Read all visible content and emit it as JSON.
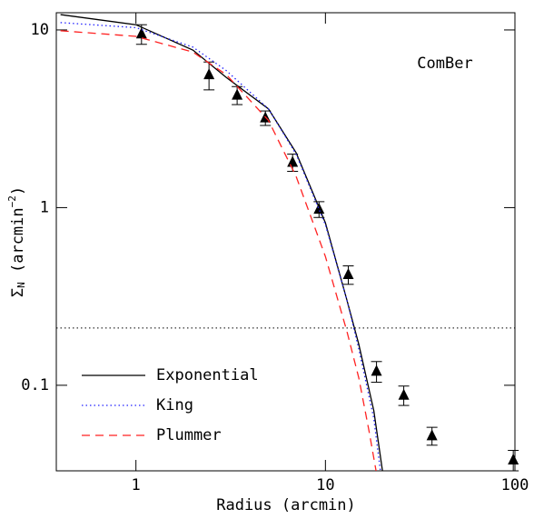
{
  "chart_data": {
    "type": "scatter",
    "xlabel": "Radius (arcmin)",
    "ylabel": [
      "Σ",
      "N",
      " (arcmin",
      "−2",
      ")"
    ],
    "annotation": "ComBer",
    "xscale": "log",
    "yscale": "log",
    "xlim": [
      0.38,
      100
    ],
    "ylim": [
      0.033,
      12.5
    ],
    "xticks": [
      1,
      10,
      100
    ],
    "yticks": [
      0.1,
      1,
      10
    ],
    "legend": "lower left",
    "series": [
      {
        "kind": "points",
        "color": "#000000",
        "x": [
          1.07,
          2.43,
          3.42,
          4.82,
          6.71,
          9.25,
          13.2,
          18.6,
          25.9,
          36.5,
          98
        ],
        "values": [
          9.5,
          5.6,
          4.3,
          3.2,
          1.8,
          0.98,
          0.42,
          0.12,
          0.088,
          0.052,
          0.038
        ],
        "errors": [
          1.2,
          1.0,
          0.5,
          0.3,
          0.2,
          0.1,
          0.05,
          0.016,
          0.011,
          0.006,
          0.005
        ]
      },
      {
        "kind": "line",
        "name": "Exponential",
        "color": "#000000",
        "style": "solid",
        "x": [
          0.4,
          1,
          2,
          3,
          5,
          7,
          10,
          13,
          15,
          18,
          20
        ],
        "values": [
          12.2,
          10.7,
          7.7,
          5.4,
          3.6,
          2.04,
          0.82,
          0.3,
          0.17,
          0.072,
          0.033
        ]
      },
      {
        "kind": "line",
        "name": "King",
        "color": "#2222ff",
        "style": "dotted",
        "x": [
          0.4,
          1,
          2,
          3,
          5,
          7,
          10,
          13,
          15,
          18,
          19.5
        ],
        "values": [
          11.0,
          10.3,
          8.0,
          5.9,
          3.6,
          2.0,
          0.8,
          0.3,
          0.16,
          0.065,
          0.033
        ]
      },
      {
        "kind": "line",
        "name": "Plummer",
        "color": "#ff2222",
        "style": "dashed",
        "x": [
          0.4,
          1,
          2,
          3,
          5,
          7,
          10,
          13,
          15,
          17,
          18.5
        ],
        "values": [
          9.9,
          9.2,
          7.5,
          5.6,
          3.1,
          1.5,
          0.53,
          0.2,
          0.11,
          0.055,
          0.033
        ]
      }
    ],
    "hline": {
      "value": 0.21,
      "style": "dotted",
      "color": "#000000"
    }
  }
}
